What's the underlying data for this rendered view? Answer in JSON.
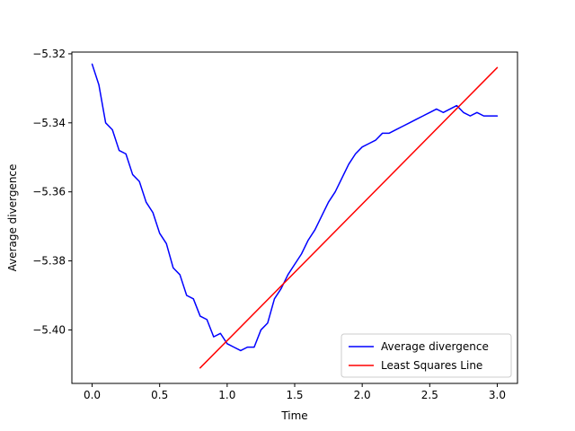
{
  "chart_data": {
    "type": "line",
    "title": "",
    "xlabel": "Time",
    "ylabel": "Average divergence",
    "xlim": [
      -0.15,
      3.15
    ],
    "ylim": [
      -5.4155,
      -5.3195
    ],
    "xticks": [
      0.0,
      0.5,
      1.0,
      1.5,
      2.0,
      2.5,
      3.0
    ],
    "xtick_labels": [
      "0.0",
      "0.5",
      "1.0",
      "1.5",
      "2.0",
      "2.5",
      "3.0"
    ],
    "yticks": [
      -5.4,
      -5.38,
      -5.36,
      -5.34,
      -5.32
    ],
    "ytick_labels": [
      "−5.40",
      "−5.38",
      "−5.36",
      "−5.34",
      "−5.32"
    ],
    "grid": false,
    "legend_position": "lower-right",
    "series": [
      {
        "name": "Average divergence",
        "color": "#0000ff",
        "x": [
          0.0,
          0.05,
          0.1,
          0.15,
          0.2,
          0.25,
          0.3,
          0.35,
          0.4,
          0.45,
          0.5,
          0.55,
          0.6,
          0.65,
          0.7,
          0.75,
          0.8,
          0.85,
          0.9,
          0.95,
          1.0,
          1.05,
          1.1,
          1.15,
          1.2,
          1.25,
          1.3,
          1.35,
          1.4,
          1.45,
          1.5,
          1.55,
          1.6,
          1.65,
          1.7,
          1.75,
          1.8,
          1.85,
          1.9,
          1.95,
          2.0,
          2.05,
          2.1,
          2.15,
          2.2,
          2.25,
          2.3,
          2.35,
          2.4,
          2.45,
          2.5,
          2.55,
          2.6,
          2.65,
          2.7,
          2.75,
          2.8,
          2.85,
          2.9,
          2.95,
          3.0
        ],
        "y": [
          -5.323,
          -5.329,
          -5.34,
          -5.342,
          -5.348,
          -5.349,
          -5.355,
          -5.357,
          -5.363,
          -5.366,
          -5.372,
          -5.375,
          -5.382,
          -5.384,
          -5.39,
          -5.391,
          -5.396,
          -5.397,
          -5.402,
          -5.401,
          -5.404,
          -5.405,
          -5.406,
          -5.405,
          -5.405,
          -5.4,
          -5.398,
          -5.391,
          -5.388,
          -5.384,
          -5.381,
          -5.378,
          -5.374,
          -5.371,
          -5.367,
          -5.363,
          -5.36,
          -5.356,
          -5.352,
          -5.349,
          -5.347,
          -5.346,
          -5.345,
          -5.343,
          -5.343,
          -5.342,
          -5.341,
          -5.34,
          -5.339,
          -5.338,
          -5.337,
          -5.336,
          -5.337,
          -5.336,
          -5.335,
          -5.337,
          -5.338,
          -5.337,
          -5.338,
          -5.338,
          -5.338
        ]
      },
      {
        "name": "Least Squares Line",
        "color": "#ff0000",
        "x": [
          0.8,
          3.0
        ],
        "y": [
          -5.411,
          -5.324
        ]
      }
    ]
  }
}
